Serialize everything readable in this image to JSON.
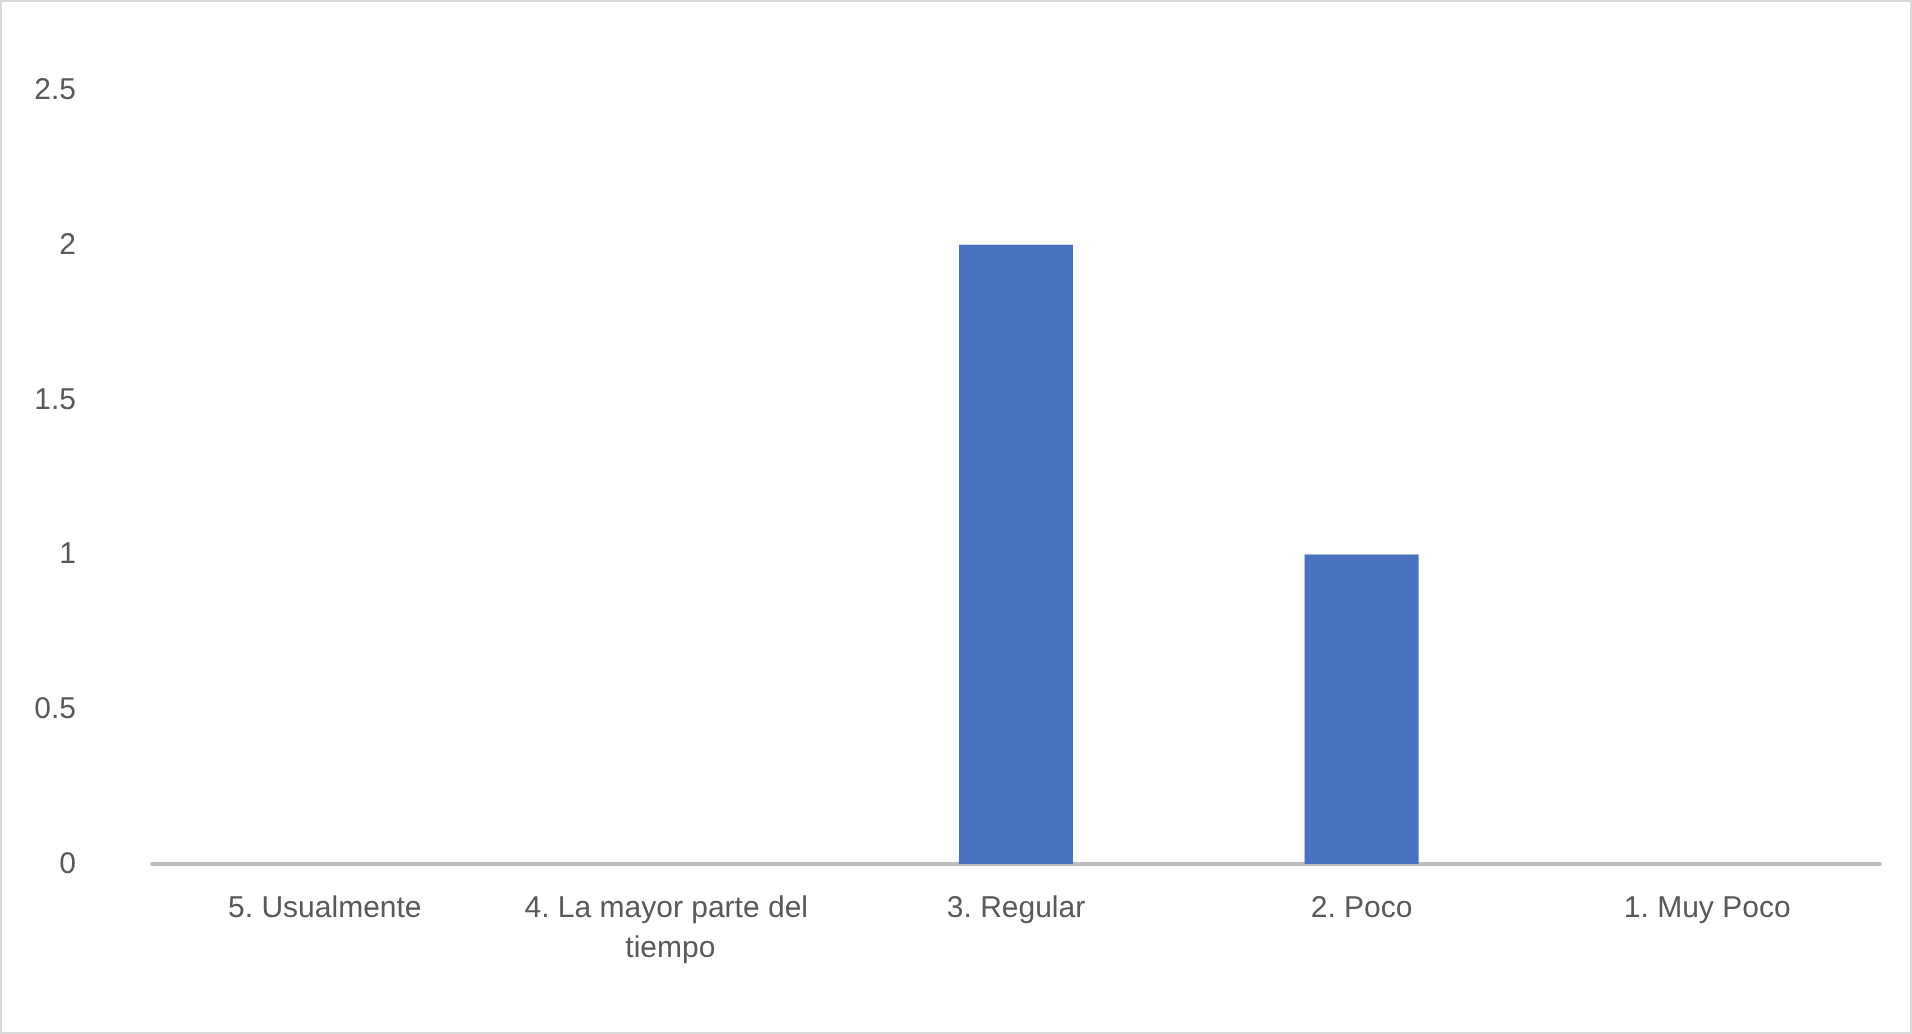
{
  "chart_data": {
    "type": "bar",
    "categories": [
      "5. Usualmente",
      "4. La mayor parte del tiempo",
      "3. Regular",
      "2. Poco",
      "1. Muy Poco"
    ],
    "values": [
      0,
      0,
      2,
      1,
      0
    ],
    "color": "#4a72c0",
    "ylim": [
      0,
      2.5
    ],
    "yticks": [
      0,
      0.5,
      1,
      1.5,
      2,
      2.5
    ],
    "grid": false
  }
}
